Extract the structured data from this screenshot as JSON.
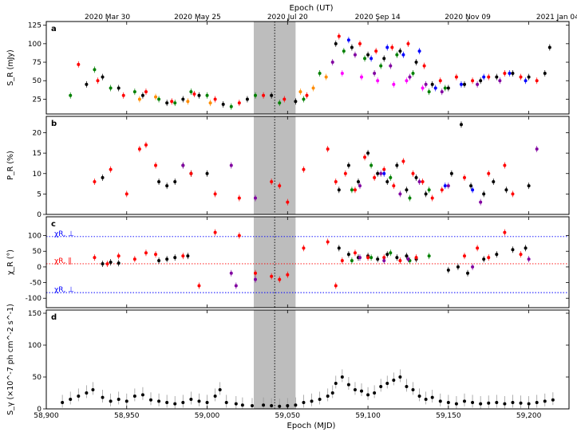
{
  "chart_data": [
    {
      "type": "scatter",
      "panel_label": "a",
      "ylabel": "S_R (mJy)",
      "ylim": [
        5,
        130
      ],
      "yticks": [
        25,
        50,
        75,
        100,
        125
      ],
      "xlim": [
        58900,
        59225
      ],
      "top_axis": {
        "title": "Epoch (UT)",
        "ticks": [
          {
            "mjd": 58938,
            "label": "2020 Mar 30"
          },
          {
            "mjd": 58994,
            "label": "2020 May 25"
          },
          {
            "mjd": 59050,
            "label": "2020 Jul 20"
          },
          {
            "mjd": 59106,
            "label": "2020 Sep 14"
          },
          {
            "mjd": 59162,
            "label": "2020 Nov 09"
          },
          {
            "mjd": 59218,
            "label": "2021 Jan 04"
          }
        ]
      },
      "series": [
        {
          "color": "#000000",
          "x": [
            58925,
            58935,
            58945,
            58960,
            58975,
            58985,
            58995,
            59010,
            59025,
            59040,
            59055,
            59080,
            59090,
            59100,
            59110,
            59120,
            59130,
            59140,
            59150,
            59160,
            59170,
            59180,
            59190,
            59200,
            59210,
            59213
          ],
          "y": [
            45,
            55,
            40,
            30,
            20,
            25,
            30,
            18,
            25,
            30,
            22,
            100,
            95,
            85,
            80,
            90,
            75,
            45,
            40,
            45,
            50,
            55,
            60,
            55,
            60,
            95
          ]
        },
        {
          "color": "#ff0000",
          "x": [
            58920,
            58932,
            58948,
            58962,
            58978,
            58992,
            59005,
            59020,
            59035,
            59048,
            59062,
            59082,
            59095,
            59105,
            59115,
            59125,
            59135,
            59145,
            59155,
            59165,
            59175,
            59185,
            59195,
            59205
          ],
          "y": [
            72,
            50,
            30,
            35,
            22,
            32,
            25,
            20,
            30,
            25,
            30,
            110,
            100,
            90,
            95,
            100,
            70,
            50,
            55,
            50,
            55,
            60,
            55,
            50
          ]
        },
        {
          "color": "#008000",
          "x": [
            58915,
            58930,
            58940,
            58955,
            58970,
            58980,
            58990,
            59000,
            59015,
            59030,
            59045,
            59060,
            59070,
            59085,
            59098,
            59108,
            59118,
            59128,
            59138,
            59148
          ],
          "y": [
            30,
            65,
            40,
            35,
            25,
            20,
            35,
            30,
            15,
            30,
            20,
            25,
            60,
            90,
            80,
            70,
            85,
            60,
            35,
            40
          ]
        },
        {
          "color": "#0000ff",
          "x": [
            59088,
            59102,
            59112,
            59122,
            59132,
            59142,
            59158,
            59172,
            59188,
            59198
          ],
          "y": [
            105,
            80,
            95,
            85,
            90,
            40,
            45,
            55,
            60,
            50
          ]
        },
        {
          "color": "#8000a0",
          "x": [
            59078,
            59092,
            59104,
            59114,
            59126,
            59136,
            59146,
            59168,
            59182
          ],
          "y": [
            75,
            85,
            60,
            70,
            55,
            45,
            35,
            45,
            50
          ]
        },
        {
          "color": "#ff8c00",
          "x": [
            58958,
            58968,
            58988,
            59002,
            59058,
            59066,
            59074
          ],
          "y": [
            25,
            28,
            22,
            20,
            35,
            40,
            55
          ]
        },
        {
          "color": "#ff00ff",
          "x": [
            59084,
            59096,
            59106,
            59116,
            59124,
            59134
          ],
          "y": [
            60,
            55,
            50,
            45,
            50,
            40
          ]
        }
      ]
    },
    {
      "type": "scatter",
      "panel_label": "b",
      "ylabel": "P_R (%)",
      "ylim": [
        0,
        24
      ],
      "yticks": [
        0,
        5,
        10,
        15,
        20
      ],
      "xlim": [
        58900,
        59225
      ],
      "series": [
        {
          "color": "#000000",
          "x": [
            58935,
            58970,
            58975,
            58980,
            58985,
            58990,
            59000,
            59082,
            59088,
            59094,
            59100,
            59106,
            59112,
            59118,
            59124,
            59130,
            59136,
            59152,
            59158,
            59164,
            59172,
            59178,
            59186,
            59200
          ],
          "y": [
            9,
            8,
            7,
            8,
            12,
            10,
            10,
            6,
            12,
            8,
            15,
            10,
            8,
            12,
            6,
            9,
            5,
            10,
            22,
            7,
            5,
            8,
            6,
            7
          ]
        },
        {
          "color": "#ff0000",
          "x": [
            58930,
            58940,
            58950,
            58958,
            58962,
            58968,
            58990,
            59005,
            59020,
            59040,
            59045,
            59050,
            59060,
            59075,
            59080,
            59086,
            59092,
            59098,
            59104,
            59110,
            59116,
            59122,
            59128,
            59134,
            59140,
            59146,
            59160,
            59175,
            59185,
            59190
          ],
          "y": [
            8,
            11,
            5,
            16,
            17,
            12,
            10,
            5,
            4,
            8,
            7,
            3,
            11,
            16,
            8,
            10,
            6,
            14,
            9,
            11,
            7,
            13,
            10,
            8,
            4,
            6,
            9,
            10,
            12,
            5
          ]
        },
        {
          "color": "#008000",
          "x": [
            59090,
            59102,
            59114,
            59126,
            59138
          ],
          "y": [
            6,
            12,
            9,
            4,
            6
          ]
        },
        {
          "color": "#8000a0",
          "x": [
            58985,
            59015,
            59030,
            59095,
            59108,
            59120,
            59132,
            59150,
            59170,
            59205
          ],
          "y": [
            12,
            12,
            4,
            7,
            10,
            5,
            8,
            7,
            3,
            16
          ]
        },
        {
          "color": "#0000ff",
          "x": [
            59110,
            59148,
            59165
          ],
          "y": [
            10,
            7,
            6
          ]
        }
      ]
    },
    {
      "type": "scatter",
      "panel_label": "c",
      "ylabel": "χ_R (°)",
      "ylim": [
        -130,
        160
      ],
      "yticks": [
        -100,
        -50,
        0,
        50,
        100
      ],
      "reference_lines": [
        {
          "y": 97,
          "label": "χR, ⊥"
        },
        {
          "y": 10,
          "label": "χR, ∥"
        },
        {
          "y": -82,
          "label": "χR, ⊥"
        }
      ],
      "xlim": [
        58900,
        59225
      ],
      "series": [
        {
          "color": "#000000",
          "x": [
            58935,
            58940,
            58945,
            58970,
            58975,
            58980,
            58988,
            59082,
            59088,
            59094,
            59100,
            59106,
            59112,
            59118,
            59124,
            59130,
            59150,
            59156,
            59162,
            59172,
            59180,
            59190,
            59198
          ],
          "y": [
            10,
            15,
            12,
            20,
            25,
            30,
            35,
            60,
            40,
            30,
            35,
            25,
            40,
            30,
            35,
            25,
            -10,
            0,
            -20,
            25,
            40,
            55,
            60
          ]
        },
        {
          "color": "#ff0000",
          "x": [
            58930,
            58938,
            58945,
            58955,
            58962,
            58968,
            58985,
            58995,
            59005,
            59020,
            59030,
            59040,
            59045,
            59050,
            59060,
            59075,
            59080,
            59084,
            59092,
            59100,
            59110,
            59120,
            59130,
            59160,
            59168,
            59175,
            59185,
            59195
          ],
          "y": [
            30,
            10,
            35,
            25,
            45,
            40,
            35,
            -60,
            110,
            100,
            -20,
            -30,
            -40,
            -25,
            60,
            80,
            -60,
            20,
            45,
            30,
            30,
            20,
            30,
            35,
            60,
            30,
            110,
            40
          ]
        },
        {
          "color": "#008000",
          "x": [
            59090,
            59102,
            59114,
            59126,
            59138
          ],
          "y": [
            20,
            30,
            45,
            20,
            35
          ]
        },
        {
          "color": "#8000a0",
          "x": [
            59015,
            59018,
            59030,
            59095,
            59110,
            59125,
            59165,
            59200
          ],
          "y": [
            -20,
            -60,
            -40,
            30,
            20,
            25,
            0,
            25
          ]
        }
      ]
    },
    {
      "type": "scatter",
      "panel_label": "d",
      "ylabel": "S_γ (×10^-7 ph cm^-2 s^-1)",
      "ylim": [
        0,
        155
      ],
      "yticks": [
        0,
        50,
        100,
        150
      ],
      "xlabel": "Epoch (MJD)",
      "xticks": [
        58900,
        58950,
        59000,
        59050,
        59100,
        59150,
        59200
      ],
      "xticklabels": [
        "58,900",
        "58,950",
        "59,000",
        "59,050",
        "59,100",
        "59,150",
        "59,200"
      ],
      "series": [
        {
          "color": "#000000",
          "x": [
            58910,
            58915,
            58920,
            58925,
            58929,
            58935,
            58940,
            58945,
            58950,
            58955,
            58960,
            58965,
            58970,
            58975,
            58980,
            58985,
            58990,
            58995,
            59000,
            59005,
            59008,
            59012,
            59018,
            59022,
            59028,
            59035,
            59040,
            59045,
            59050,
            59055,
            59060,
            59065,
            59070,
            59075,
            59078,
            59080,
            59084,
            59088,
            59092,
            59096,
            59100,
            59104,
            59108,
            59112,
            59116,
            59120,
            59124,
            59128,
            59132,
            59136,
            59140,
            59145,
            59150,
            59155,
            59160,
            59165,
            59170,
            59175,
            59180,
            59185,
            59190,
            59195,
            59200,
            59205,
            59210,
            59215
          ],
          "y": [
            10,
            15,
            20,
            25,
            30,
            18,
            12,
            15,
            12,
            20,
            22,
            14,
            12,
            10,
            8,
            10,
            15,
            12,
            10,
            20,
            30,
            10,
            8,
            6,
            5,
            6,
            5,
            4,
            5,
            6,
            10,
            12,
            15,
            20,
            25,
            40,
            50,
            38,
            30,
            28,
            22,
            25,
            35,
            40,
            45,
            50,
            35,
            30,
            20,
            15,
            18,
            12,
            10,
            8,
            12,
            10,
            8,
            9,
            10,
            8,
            10,
            9,
            8,
            10,
            12,
            14
          ]
        }
      ]
    }
  ],
  "labels": {
    "top_title": "Epoch (UT)",
    "top_ticks": [
      "2020 Mar 30",
      "2020 May 25",
      "2020 Jul 20",
      "2020 Sep 14",
      "2020 Nov 09",
      "2021 Jan 04"
    ],
    "xlabel": "Epoch (MJD)",
    "xticklabels": [
      "58,900",
      "58,950",
      "59,000",
      "59,050",
      "59,100",
      "59,150",
      "59,200"
    ],
    "panel_a": "a",
    "panel_b": "b",
    "panel_c": "c",
    "panel_d": "d",
    "ylabel_a": "S_R (mJy)",
    "ylabel_b": "P_R (%)",
    "ylabel_c": "χ_R (°)",
    "ylabel_d": "S_γ (×10^-7 ph cm^-2 s^-1)",
    "ref_perp_top": "χR, ⊥",
    "ref_par": "χR, ∥",
    "ref_perp_bot": "χR, ⊥"
  },
  "shaded_region": {
    "start_mjd": 59029,
    "end_mjd": 59055,
    "color": "#bdbdbd"
  },
  "dotted_marker_mjd": 59042
}
